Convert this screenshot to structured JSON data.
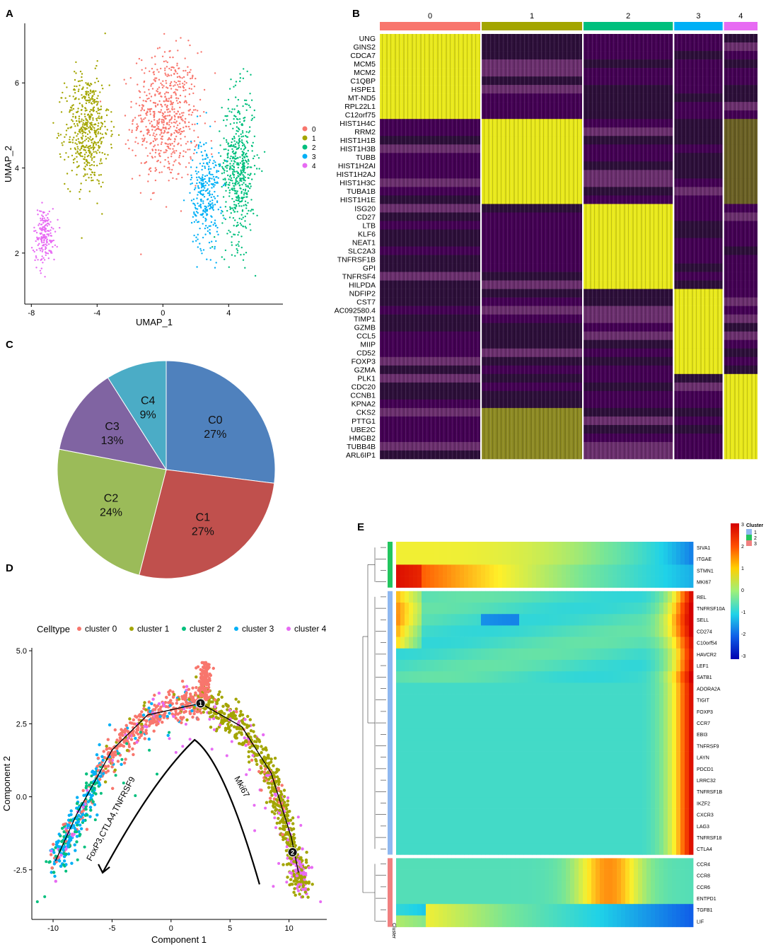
{
  "chart_data": [
    {
      "panel": "A",
      "type": "scatter",
      "title": "",
      "xlabel": "UMAP_1",
      "ylabel": "UMAP_2",
      "xlim": [
        -8.4,
        7.3
      ],
      "ylim": [
        0.8,
        7.4
      ],
      "xticks": [
        -8,
        -4,
        0,
        4
      ],
      "yticks": [
        2,
        4,
        6
      ],
      "legend": {
        "position": "right",
        "labels": [
          "0",
          "1",
          "2",
          "3",
          "4"
        ]
      },
      "colors": [
        "#F8766D",
        "#A3A500",
        "#00BF7D",
        "#00B0F6",
        "#E76BF3"
      ],
      "clusters": [
        {
          "name": "0",
          "n": 620,
          "center": [
            0.2,
            5.2
          ],
          "spread": [
            1.8,
            1.4
          ]
        },
        {
          "name": "1",
          "n": 520,
          "center": [
            -4.6,
            4.9
          ],
          "spread": [
            1.2,
            1.2
          ]
        },
        {
          "name": "2",
          "n": 520,
          "center": [
            4.6,
            4.0
          ],
          "spread": [
            0.9,
            1.6
          ]
        },
        {
          "name": "3",
          "n": 300,
          "center": [
            2.6,
            3.4
          ],
          "spread": [
            0.8,
            1.2
          ]
        },
        {
          "name": "4",
          "n": 180,
          "center": [
            -7.2,
            2.4
          ],
          "spread": [
            0.6,
            0.6
          ]
        }
      ]
    },
    {
      "panel": "B",
      "type": "heatmap",
      "clusters": [
        "0",
        "1",
        "2",
        "3",
        "4"
      ],
      "cluster_share": [
        0.27,
        0.27,
        0.24,
        0.13,
        0.09
      ],
      "cluster_colors": [
        "#F8766D",
        "#A3A500",
        "#00BF7D",
        "#00B0F6",
        "#E76BF3"
      ],
      "low_color": "#440154",
      "mid_color": "#2d0f3a",
      "high_color": "#e9e91a",
      "genes": [
        "UNG",
        "GINS2",
        "CDCA7",
        "MCM5",
        "MCM2",
        "C1QBP",
        "HSPE1",
        "MT-ND5",
        "RPL22L1",
        "C12orf75",
        "HIST1H4C",
        "RRM2",
        "HIST1H1B",
        "HIST1H3B",
        "TUBB",
        "HIST1H2AI",
        "HIST1H2AJ",
        "HIST1H3C",
        "TUBA1B",
        "HIST1H1E",
        "ISG20",
        "CD27",
        "LTB",
        "KLF6",
        "NEAT1",
        "SLC2A3",
        "TNFRSF1B",
        "GPI",
        "TNFRSF4",
        "HILPDA",
        "NDFIP2",
        "CST7",
        "AC092580.4",
        "TIMP1",
        "GZMB",
        "CCL5",
        "MIIP",
        "CD52",
        "FOXP3",
        "GZMA",
        "PLK1",
        "CDC20",
        "CCNB1",
        "KPNA2",
        "CKS2",
        "PTTG1",
        "UBE2C",
        "HMGB2",
        "TUBB4B",
        "ARL6IP1"
      ],
      "gene_marker_cluster": [
        0,
        0,
        0,
        0,
        0,
        0,
        0,
        0,
        0,
        0,
        1,
        1,
        1,
        1,
        1,
        1,
        1,
        1,
        1,
        1,
        2,
        2,
        2,
        2,
        2,
        2,
        2,
        2,
        2,
        2,
        3,
        3,
        3,
        3,
        3,
        3,
        3,
        3,
        3,
        3,
        4,
        4,
        4,
        4,
        4,
        4,
        4,
        4,
        4,
        4
      ]
    },
    {
      "panel": "C",
      "type": "pie",
      "labels": [
        "C0",
        "C1",
        "C2",
        "C3",
        "C4"
      ],
      "values": [
        27,
        27,
        24,
        13,
        9
      ],
      "display": [
        "27%",
        "27%",
        "24%",
        "13%",
        "9%"
      ],
      "colors": [
        "#4F81BD",
        "#C0504D",
        "#9BBB59",
        "#8064A2",
        "#4BACC6"
      ]
    },
    {
      "panel": "D",
      "type": "scatter",
      "xlabel": "Component 1",
      "ylabel": "Component 2",
      "xlim": [
        -11.8,
        13.2
      ],
      "ylim": [
        -4.2,
        5.1
      ],
      "xticks": [
        -10,
        -5,
        0,
        5,
        10
      ],
      "yticks": [
        -2.5,
        0.0,
        2.5,
        5.0
      ],
      "ytick_labels": [
        "-2.5",
        "0.0",
        "2.5",
        "5.0"
      ],
      "legend": {
        "position": "top",
        "title": "Celltype",
        "labels": [
          "cluster 0",
          "cluster 1",
          "cluster 2",
          "cluster 3",
          "cluster 4"
        ]
      },
      "colors": [
        "#F8766D",
        "#A3A500",
        "#00BF7D",
        "#00B0F6",
        "#E76BF3"
      ],
      "trajectory": [
        [
          -9.8,
          -2.2
        ],
        [
          -8,
          -0.6
        ],
        [
          -5,
          1.6
        ],
        [
          -2,
          2.8
        ],
        [
          2.5,
          3.2
        ],
        [
          6,
          2.4
        ],
        [
          8.5,
          0.8
        ],
        [
          10.2,
          -1.4
        ],
        [
          10.8,
          -2.6
        ]
      ],
      "branch_points": [
        {
          "label": "1",
          "x": 2.5,
          "y": 3.2
        },
        {
          "label": "2",
          "x": 10.3,
          "y": -1.9
        }
      ],
      "arrow_path": [
        [
          7.5,
          -3.0
        ],
        [
          4.5,
          1.2
        ],
        [
          2.0,
          1.95
        ],
        [
          -1.5,
          0.6
        ],
        [
          -5.8,
          -2.6
        ]
      ],
      "annotations": [
        {
          "text": "FoxP3,CTLA4,TNFRSF9",
          "x": -4.9,
          "y": -0.8,
          "rotation": -62
        },
        {
          "text": "Mki67",
          "x": 5.8,
          "y": 0.3,
          "rotation": 62
        }
      ]
    },
    {
      "panel": "E",
      "type": "heatmap",
      "row_groups": [
        {
          "cluster": "2",
          "color": "#22C55E",
          "genes": [
            "SIVA1",
            "ITGAE",
            "STMN1",
            "MKI67"
          ]
        },
        {
          "cluster": "1",
          "color": "#8FB8F0",
          "genes": [
            "REL",
            "TNFRSF10A",
            "SELL",
            "CD274",
            "C10orf54",
            "HAVCR2",
            "LEF1",
            "SATB1",
            "ADORA2A",
            "TIGIT",
            "FOXP3",
            "CCR7",
            "EBI3",
            "TNFRSF9",
            "LAYN",
            "PDCD1",
            "LRRC32",
            "TNFRSF1B",
            "IKZF2",
            "CXCR3",
            "LAG3",
            "TNFRSF18",
            "CTLA4"
          ]
        },
        {
          "cluster": "3",
          "color": "#F08080",
          "genes": [
            "CCR4",
            "CCR8",
            "CCR6",
            "ENTPD1",
            "TGFB1",
            "LIF"
          ]
        }
      ],
      "group_patterns": [
        "decreasing",
        "late-increasing",
        "mid-peak"
      ],
      "colorbar": {
        "min": -3,
        "max": 3,
        "ticks": [
          "3",
          "2",
          "1",
          "0",
          "-1",
          "-2",
          "-3"
        ]
      },
      "annotation_legend": {
        "title": "Cluster",
        "labels": [
          "1",
          "2",
          "3"
        ],
        "colors": [
          "#8FB8F0",
          "#22C55E",
          "#F08080"
        ]
      },
      "side_label": "Cluster"
    }
  ],
  "panel_labels": [
    "A",
    "B",
    "C",
    "D",
    "E"
  ]
}
